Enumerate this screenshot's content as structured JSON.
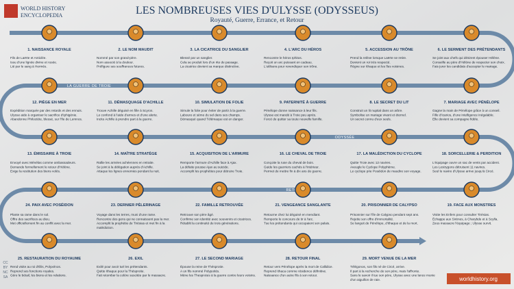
{
  "header": {
    "logo": [
      "WORLD HISTORY",
      "ENCYCLOPEDIA"
    ],
    "title": "LES NOMBREUSES VIES D'ULYSSE (ODYSSEUS)",
    "subtitle": "Royauté, Guerre, Errance, et Retour"
  },
  "routes": [
    "LA GUERRE DE TROIE",
    "ODYSSÉE",
    "RETOUR"
  ],
  "steps": [
    {
      "label": "1. NAISSANCE ROYALE",
      "lines": [
        "Fils de Laërte et Anticlée.",
        "Issu d'une lignée divine et rusée.",
        "Lié par le sang à Hermès."
      ]
    },
    {
      "label": "2. LE NOM MAUDIT",
      "lines": [
        "Nommé par son grand-père.",
        "Nom associé à la douleur.",
        "Préfigure ses souffrances futures."
      ]
    },
    {
      "label": "3. LA CICATRICE DU SANGLIER",
      "lines": [
        "Blessé par un sanglier.",
        "Cela se produit lors d'un rite de passage.",
        "La cicatrice devient sa marque distinctive."
      ]
    },
    {
      "label": "4. L'ARC DU HÉROS",
      "lines": [
        "Rencontre le héros Iphitos.",
        "Reçoit un arc puissant en cadeau.",
        "L'utilisera pour revendiquer son trône."
      ]
    },
    {
      "label": "5. ACCESSION AU TRÔNE",
      "lines": [
        "Prend la relève lorsque Laërte se retire.",
        "Devient un roi très respecté.",
        "Règne sur Ithaque et les îles voisines."
      ]
    },
    {
      "label": "6. LE SERMENT DES PRÉTENDANTS",
      "lines": [
        "Se joint aux chefs qui désirent épouser Hélène.",
        "Conseille au père d'Hélène de respecter son choix.",
        "Fais jurer les candidats d'accepter le mariage."
      ]
    },
    {
      "label": "7. MARIAGE AVEC PÉNÉLOPE",
      "lines": [
        "Gagne la main de Pénélope grâce à un conseil.",
        "Fille d'Icarios, d'une intelligence inégalable.",
        "Elle devient sa compagne fidèle."
      ]
    },
    {
      "label": "8. LE SECRET DU LIT",
      "lines": [
        "Construit un lit nuptial dans un arbre.",
        "Symbolise un mariage vivant et éternel.",
        "Un secret connu d'eux seuls."
      ]
    },
    {
      "label": "9. PATERNITÉ À GUERRE",
      "lines": [
        "Pénélope donne naissance à leur fils.",
        "Ulysse est mandé à Troie peu après.",
        "Forcé de quitter sa toute nouvelle famille."
      ]
    },
    {
      "label": "10. SIMULATION DE FOLIE",
      "lines": [
        "Simule la folie pour éviter de partir à la guerre.",
        "Laboure et sème du sel dans ses champs.",
        "Démasqué quand Télémaque est en danger."
      ]
    },
    {
      "label": "11. DÉMASQUAGE D'ACHILLE",
      "lines": [
        "Trouve Achille déguisé en fille à Scyros.",
        "Le confond à l'aide d'armes et d'une alerte.",
        "Incite Achille à prendre part à la guerre."
      ]
    },
    {
      "label": "12. PIÈGE EN MER",
      "lines": [
        "Expédition marquée par des retards et des ennuis.",
        "Ulysse aide à organiser le sacrifice d'Iphigénie.",
        "Abandonne Philoctète, blessé, sur l'île de Lemnos."
      ]
    },
    {
      "label": "13. ÉMISSAIRE À TROIE",
      "lines": [
        "Envoyé avec Ménélas comme ambassadeurs.",
        "Demande formellement le retour d'Hélène.",
        "Exige la restitution des biens volés."
      ]
    },
    {
      "label": "14. MAÎTRE STRATÈGE",
      "lines": [
        "Rallie les armées achéennes en retraite.",
        "Se joint à la délégation auprès d'Achille.",
        "Attaque les lignes ennemies pendant la nuit."
      ]
    },
    {
      "label": "15. ACQUISITION DE L'ARMURE",
      "lines": [
        "Remporte l'armure d'Achille face à Ajax.",
        "La défaite pousse Ajax au suicide.",
        "Accomplit les prophéties pour détruire Troie."
      ]
    },
    {
      "label": "16. LE CHEVAL DE TROIE",
      "lines": [
        "Conçoite la ruse du cheval de bois.",
        "Guide les guerriers cachés à l'intérieur.",
        "Permet de mettre fin à dix ans de guerre."
      ]
    },
    {
      "label": "17. LA MALÉDICTION DU CYCLOPE",
      "lines": [
        "Quitte Troie avec 12 navires.",
        "Aveugle le Cyclope Polyphème.",
        "Le cyclope prie Poséidon de maudire son voyage."
      ]
    },
    {
      "label": "18. SORCELLERIE & PERDITION",
      "lines": [
        "L'équipage ouvre un sac de vents par accident.",
        "Les Lestrygons détruisent 11 navires.",
        "Seul le navire d'Ulysse arrive jusqu'à Circé."
      ]
    },
    {
      "label": "19. FACE AUX MONSTRES",
      "lines": [
        "Visite les Enfers pour consulter Tirésias.",
        "Échappe aux Sirènes, à Charybde et à Scylla.",
        "Zeus massacre l'équipage ; Ulysse survit."
      ]
    },
    {
      "label": "20. PRISONNIER DE CALYPSO",
      "lines": [
        "Prisonnier sur l'île de Calypso pendant sept ans.",
        "Rejette son offre d'immortalité.",
        "Se languit de Pénélope, d'Ithaque et de la mort."
      ]
    },
    {
      "label": "21. VENGEANCE SANGLANTE",
      "lines": [
        "Retourne chez lui déguisé en mendiant.",
        "Remporte le concours de tir à l'arc.",
        "Tue les prétendants qui occupaient son palais."
      ]
    },
    {
      "label": "22. FAMILLE RETROUVÉE",
      "lines": [
        "Retrouve son père âgé.",
        "Confirme son identité avec souvenirs et cicatrices.",
        "Rétablit la continuité de trois générations."
      ]
    },
    {
      "label": "23. DERNIER PÈLERINAGE",
      "lines": [
        "Voyage dans les terres, muni d'une rame.",
        "Rencontre des gens qui ne connaissent pas la mer.",
        "Accomplit la prophétie de Tirésias et met fin à la",
        "malédiction."
      ]
    },
    {
      "label": "24. PAIX AVEC POSÉIDON",
      "lines": [
        "Plante sa rame dans le sol.",
        "Offre des sacrifices au dieu.",
        "Met officiellement fin au conflit avec la mer."
      ]
    },
    {
      "label": "25. RESTAURATION DU ROYAUME",
      "lines": [
        "Rend visite au roi d'Élis, Polyxénos.",
        "Reprend ses fonctions royales.",
        "Gère le bétail, les biens et les relations."
      ]
    },
    {
      "label": "26. EXIL",
      "lines": [
        "Exilé pour avoir tué les prétendants.",
        "Quitte Ithaque pour la Thésprotie.",
        "Fait retomber la colère suscitée par le massacre."
      ]
    },
    {
      "label": "27. LE SECOND MARIAGE",
      "lines": [
        "Épouse la reine de Thésprotie.",
        "A un fils nommé Polypoitès.",
        "Mène les Thesprotes à la guerre contre leurs voisins."
      ]
    },
    {
      "label": "28. RETOUR FINAL",
      "lines": [
        "Retour vers Pénélope après la mort de Callidice.",
        "Reprend Ithaca comme résidence définitive.",
        "Naissance d'un autre fils à son retour."
      ]
    },
    {
      "label": "29. MORT VENUE DE LA MER",
      "lines": [
        "Télégonos, son fils né de Circé, arrive.",
        "Il part à la recherche de son père, mais l'affronte.",
        "Sans le savoir il tue son père, Ulysse avec une lance munie",
        "d'un aiguillon de raie."
      ]
    }
  ],
  "footer": {
    "site": "worldhistory.org",
    "license": [
      "CC",
      "BY",
      "NC",
      "SA"
    ]
  }
}
